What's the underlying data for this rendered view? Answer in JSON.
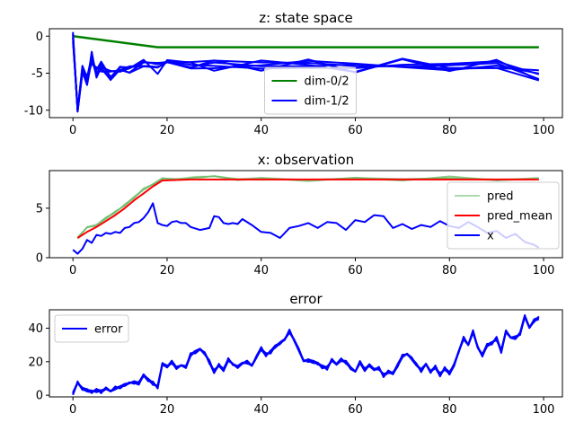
{
  "chart_data": [
    {
      "type": "line",
      "title": "z: state space",
      "xlim": [
        -5,
        104
      ],
      "ylim": [
        -11,
        1
      ],
      "xticks": [
        "0",
        "20",
        "40",
        "60",
        "80",
        "100"
      ],
      "yticks": [
        "0",
        "-5",
        "-10"
      ],
      "legend": {
        "placement": "lower-center",
        "entries": [
          "dim-0/2",
          "dim-1/2"
        ]
      },
      "series": [
        {
          "name": "dim-0/2",
          "color": "#008000",
          "x": [
            0,
            18,
            20,
            40,
            60,
            80,
            99
          ],
          "y": [
            0,
            -1.5,
            -1.5,
            -1.5,
            -1.5,
            -1.5,
            -1.5
          ]
        },
        {
          "name": "dim-1/2",
          "color": "#0000ff",
          "x": [
            0,
            1,
            2,
            3,
            4,
            5,
            6,
            8,
            10,
            12,
            15,
            18,
            20,
            25,
            30,
            40,
            50,
            60,
            70,
            80,
            90,
            99
          ],
          "y": [
            0,
            -10.5,
            -4.5,
            -6,
            -3,
            -5,
            -4,
            -5.5,
            -4,
            -4.5,
            -3.8,
            -4.2,
            -3.7,
            -3.9,
            -3.8,
            -4.0,
            -3.9,
            -4.1,
            -3.9,
            -4.0,
            -3.8,
            -5.5
          ]
        }
      ]
    },
    {
      "type": "line",
      "title": "x: observation",
      "xlim": [
        -5,
        104
      ],
      "ylim": [
        0,
        8.8
      ],
      "xticks": [
        "0",
        "20",
        "40",
        "60",
        "80",
        "100"
      ],
      "yticks": [
        "0",
        "5"
      ],
      "legend": {
        "placement": "right",
        "entries": [
          "pred",
          "pred_mean",
          "x"
        ]
      },
      "series": [
        {
          "name": "pred",
          "color": "#66bb66",
          "x": [
            1,
            3,
            5,
            7,
            9,
            11,
            13,
            15,
            17,
            19,
            22,
            26,
            30,
            35,
            40,
            50,
            60,
            70,
            80,
            90,
            99
          ],
          "y": [
            2.0,
            3.0,
            3.3,
            4.0,
            4.6,
            5.3,
            6.1,
            6.9,
            7.5,
            8.0,
            7.9,
            8.1,
            8.2,
            7.9,
            8.0,
            7.8,
            8.0,
            7.9,
            8.1,
            7.9,
            8.0
          ]
        },
        {
          "name": "pred_mean",
          "color": "#ff0000",
          "x": [
            1,
            3,
            5,
            7,
            9,
            11,
            13,
            15,
            17,
            19,
            25,
            40,
            60,
            80,
            99
          ],
          "y": [
            2.0,
            2.6,
            3.1,
            3.7,
            4.3,
            5.0,
            5.8,
            6.5,
            7.2,
            7.8,
            7.9,
            7.9,
            7.9,
            7.9,
            7.9
          ]
        },
        {
          "name": "x",
          "color": "#0000ff",
          "x": [
            0,
            1,
            2,
            3,
            4,
            5,
            6,
            7,
            8,
            9,
            10,
            11,
            12,
            13,
            14,
            15,
            16,
            17,
            18,
            19,
            20,
            21,
            22,
            23,
            24,
            25,
            27,
            29,
            30,
            31,
            32,
            33,
            34,
            35,
            36,
            38,
            40,
            42,
            44,
            46,
            48,
            50,
            52,
            54,
            56,
            58,
            60,
            62,
            64,
            66,
            68,
            70,
            72,
            74,
            76,
            78,
            80,
            82,
            84,
            86,
            88,
            90,
            92,
            94,
            96,
            98,
            99
          ],
          "y": [
            0.8,
            0.4,
            0.9,
            1.8,
            1.5,
            2.3,
            2.2,
            2.5,
            2.4,
            2.6,
            2.5,
            3.0,
            3.1,
            3.5,
            3.6,
            4.0,
            4.6,
            5.5,
            3.5,
            3.3,
            3.2,
            3.6,
            3.7,
            3.5,
            3.5,
            3.1,
            2.8,
            3.0,
            4.2,
            4.1,
            3.5,
            3.4,
            3.5,
            3.4,
            3.9,
            3.3,
            2.6,
            2.5,
            2.0,
            3.0,
            3.2,
            3.5,
            3.0,
            3.6,
            3.5,
            2.8,
            3.8,
            3.6,
            4.3,
            4.2,
            3.0,
            3.4,
            2.9,
            3.3,
            3.1,
            3.7,
            3.2,
            3.0,
            3.6,
            3.1,
            2.5,
            2.7,
            2.0,
            2.4,
            1.6,
            1.3,
            1.0
          ]
        }
      ]
    },
    {
      "type": "line",
      "title": "error",
      "xlim": [
        -5,
        104
      ],
      "ylim": [
        -1,
        51
      ],
      "xticks": [
        "0",
        "20",
        "40",
        "60",
        "80",
        "100"
      ],
      "yticks": [
        "0",
        "20",
        "40"
      ],
      "legend": {
        "placement": "upper-left",
        "entries": [
          "error"
        ]
      },
      "series": [
        {
          "name": "error",
          "color": "#0000ff",
          "x": [
            0,
            1,
            2,
            3,
            4,
            5,
            6,
            7,
            8,
            9,
            10,
            11,
            12,
            13,
            14,
            15,
            16,
            17,
            18,
            19,
            20,
            21,
            22,
            23,
            24,
            25,
            26,
            27,
            28,
            29,
            30,
            31,
            32,
            33,
            34,
            35,
            36,
            37,
            38,
            39,
            40,
            41,
            42,
            43,
            44,
            45,
            46,
            47,
            48,
            49,
            50,
            51,
            52,
            53,
            54,
            55,
            56,
            57,
            58,
            59,
            60,
            61,
            62,
            63,
            64,
            65,
            66,
            67,
            68,
            69,
            70,
            71,
            72,
            73,
            74,
            75,
            76,
            77,
            78,
            79,
            80,
            81,
            82,
            83,
            84,
            85,
            86,
            87,
            88,
            89,
            90,
            91,
            92,
            93,
            94,
            95,
            96,
            97,
            98,
            99
          ],
          "y": [
            1,
            7,
            4,
            3,
            2,
            3,
            2,
            4,
            3,
            4,
            5,
            6,
            7,
            8,
            7,
            12,
            9,
            7,
            5,
            19,
            17,
            20,
            16,
            18,
            17,
            24,
            26,
            27,
            25,
            20,
            14,
            18,
            15,
            21,
            19,
            17,
            19,
            20,
            17,
            23,
            28,
            24,
            26,
            29,
            31,
            34,
            38,
            33,
            27,
            20,
            21,
            20,
            19,
            17,
            16,
            21,
            19,
            21,
            20,
            16,
            14,
            20,
            15,
            18,
            15,
            16,
            12,
            14,
            13,
            18,
            23,
            25,
            22,
            18,
            15,
            18,
            14,
            17,
            12,
            16,
            13,
            18,
            27,
            34,
            30,
            38,
            28,
            24,
            30,
            31,
            34,
            26,
            38,
            35,
            34,
            37,
            47,
            40,
            45,
            46
          ]
        }
      ]
    }
  ]
}
